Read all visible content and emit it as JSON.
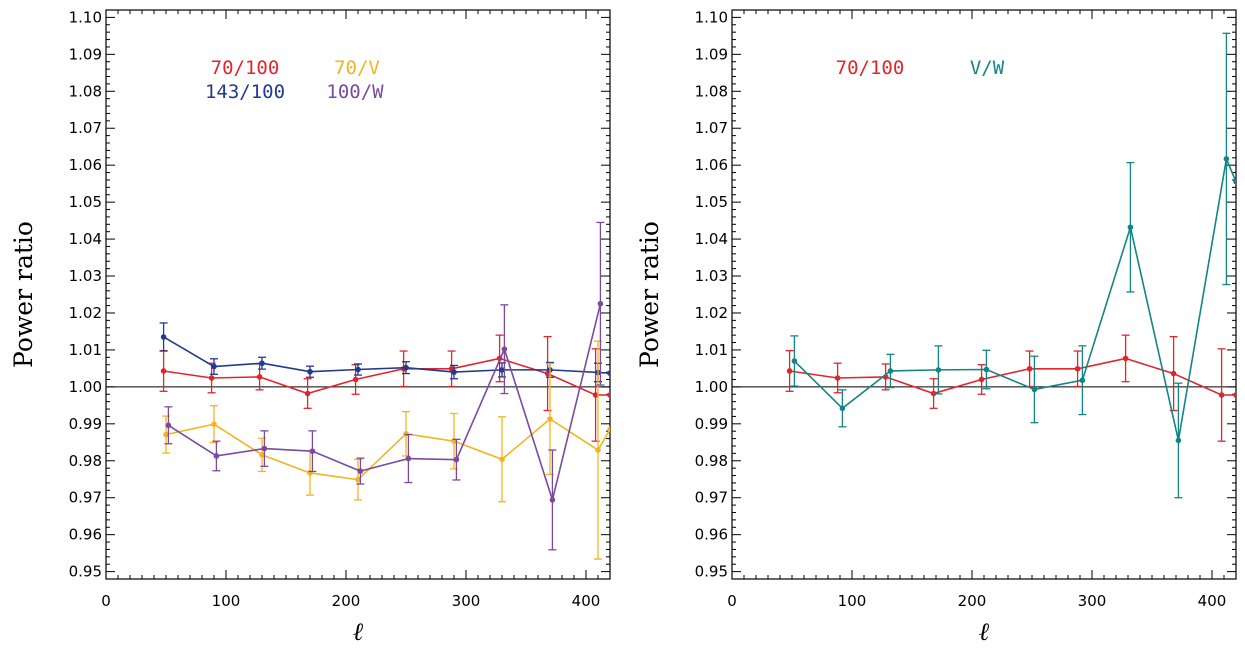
{
  "chart_data": [
    {
      "type": "line",
      "xlabel": "ℓ",
      "ylabel": "Power ratio",
      "xlim": [
        0,
        420
      ],
      "ylim": [
        0.948,
        1.102
      ],
      "xticks": [
        0,
        100,
        200,
        300,
        400
      ],
      "yticks": [
        0.95,
        0.96,
        0.97,
        0.98,
        0.99,
        1.0,
        1.01,
        1.02,
        1.03,
        1.04,
        1.05,
        1.06,
        1.07,
        1.08,
        1.09,
        1.1
      ],
      "reference_line": 1.0,
      "legend": [
        {
          "label": "70/100",
          "color": "#e0262d"
        },
        {
          "label": "70/V",
          "color": "#f2b521"
        },
        {
          "label": "143/100",
          "color": "#213b8f"
        },
        {
          "label": "100/W",
          "color": "#7b4a9e"
        }
      ],
      "series": [
        {
          "name": "70/100",
          "color": "#e0262d",
          "x": [
            48,
            88,
            128,
            168,
            208,
            248,
            288,
            328,
            368,
            408,
            420
          ],
          "y": [
            1.0043,
            1.0024,
            1.0027,
            0.9982,
            1.002,
            1.0049,
            1.0049,
            1.0077,
            1.0036,
            0.9978,
            0.9978
          ],
          "err": [
            0.0055,
            0.004,
            0.0035,
            0.004,
            0.004,
            0.0048,
            0.0048,
            0.0063,
            0.01,
            0.0125,
            0.0
          ]
        },
        {
          "name": "143/100",
          "color": "#213b8f",
          "x": [
            48,
            90,
            130,
            170,
            210,
            250,
            290,
            330,
            370,
            410,
            420
          ],
          "y": [
            1.0135,
            1.0055,
            1.0064,
            1.0041,
            1.0047,
            1.0052,
            1.004,
            1.0046,
            1.0046,
            1.0039,
            1.0037
          ],
          "err": [
            0.0038,
            0.0021,
            0.0016,
            0.0015,
            0.0015,
            0.0016,
            0.0018,
            0.0019,
            0.002,
            0.0025,
            0.0
          ]
        },
        {
          "name": "70/V",
          "color": "#f2b521",
          "x": [
            50,
            90,
            130,
            170,
            210,
            250,
            290,
            330,
            370,
            410,
            420
          ],
          "y": [
            0.9871,
            0.9899,
            0.9816,
            0.9767,
            0.9749,
            0.9873,
            0.9853,
            0.9804,
            0.9913,
            0.9829,
            0.9885
          ],
          "err": [
            0.005,
            0.005,
            0.0045,
            0.006,
            0.0055,
            0.006,
            0.0075,
            0.0115,
            0.015,
            0.0295,
            0.0
          ]
        },
        {
          "name": "100/W",
          "color": "#7b4a9e",
          "x": [
            52,
            92,
            132,
            172,
            212,
            252,
            292,
            332,
            372,
            412
          ],
          "y": [
            0.9896,
            0.9813,
            0.9833,
            0.9826,
            0.9772,
            0.9806,
            0.9803,
            1.0102,
            0.9694,
            1.0225
          ],
          "err": [
            0.005,
            0.004,
            0.0048,
            0.0055,
            0.0035,
            0.0065,
            0.0055,
            0.012,
            0.0135,
            0.022
          ]
        }
      ]
    },
    {
      "type": "line",
      "xlabel": "ℓ",
      "ylabel": "Power ratio",
      "xlim": [
        0,
        420
      ],
      "ylim": [
        0.948,
        1.102
      ],
      "xticks": [
        0,
        100,
        200,
        300,
        400
      ],
      "yticks": [
        0.95,
        0.96,
        0.97,
        0.98,
        0.99,
        1.0,
        1.01,
        1.02,
        1.03,
        1.04,
        1.05,
        1.06,
        1.07,
        1.08,
        1.09,
        1.1
      ],
      "reference_line": 1.0,
      "legend": [
        {
          "label": "70/100",
          "color": "#e0262d"
        },
        {
          "label": "V/W",
          "color": "#138585"
        }
      ],
      "series": [
        {
          "name": "70/100",
          "color": "#e0262d",
          "x": [
            48,
            88,
            128,
            168,
            208,
            248,
            288,
            328,
            368,
            408,
            420
          ],
          "y": [
            1.0043,
            1.0024,
            1.0027,
            0.9982,
            1.002,
            1.0049,
            1.0049,
            1.0077,
            1.0036,
            0.9978,
            0.9978
          ],
          "err": [
            0.0055,
            0.004,
            0.0035,
            0.004,
            0.004,
            0.0048,
            0.0048,
            0.0063,
            0.01,
            0.0125,
            0.0
          ]
        },
        {
          "name": "V/W",
          "color": "#138585",
          "x": [
            52,
            92,
            132,
            172,
            212,
            252,
            292,
            332,
            372,
            412,
            420
          ],
          "y": [
            1.007,
            0.9942,
            1.0043,
            1.0046,
            1.0047,
            0.9993,
            1.0018,
            1.0432,
            0.9855,
            1.0617,
            1.0555
          ],
          "err": [
            0.0068,
            0.005,
            0.0045,
            0.0065,
            0.0052,
            0.009,
            0.0093,
            0.0175,
            0.0155,
            0.034,
            0.0
          ]
        }
      ]
    }
  ]
}
